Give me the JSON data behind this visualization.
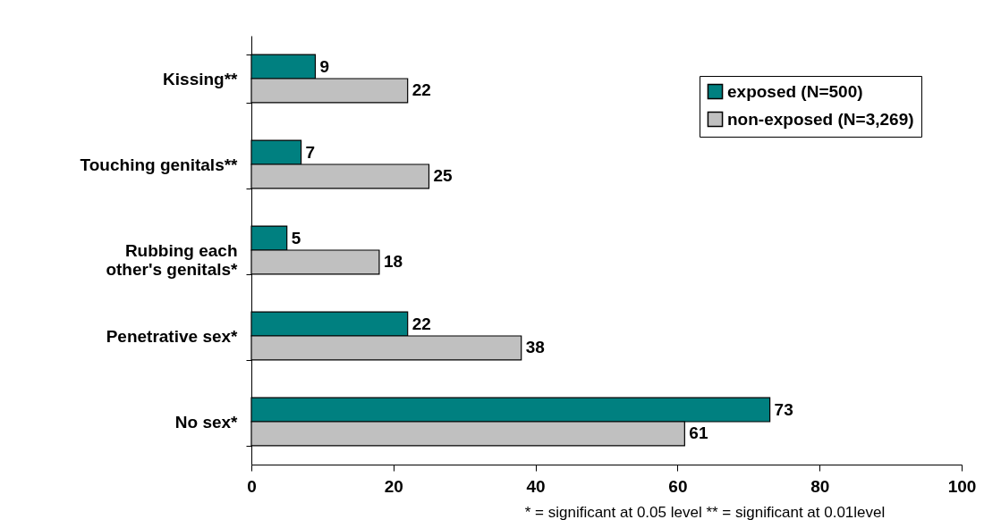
{
  "chart_data": {
    "type": "bar",
    "orientation": "horizontal",
    "categories": [
      "Kissing**",
      "Touching genitals**",
      "Rubbing each other's genitals*",
      "Penetrative sex*",
      "No sex*"
    ],
    "series": [
      {
        "name": "exposed (N=500)",
        "color": "#008080",
        "values": [
          9,
          7,
          5,
          22,
          73
        ]
      },
      {
        "name": "non-exposed (N=3,269)",
        "color": "#c0c0c0",
        "values": [
          22,
          25,
          18,
          38,
          61
        ]
      }
    ],
    "xlim": [
      0,
      100
    ],
    "xticks": [
      0,
      20,
      40,
      60,
      80,
      100
    ],
    "grid": false,
    "legend": "top right",
    "data_labels": true,
    "annotations": [
      "* = significant at 0.05 level    ** = significant at 0.01level"
    ]
  }
}
